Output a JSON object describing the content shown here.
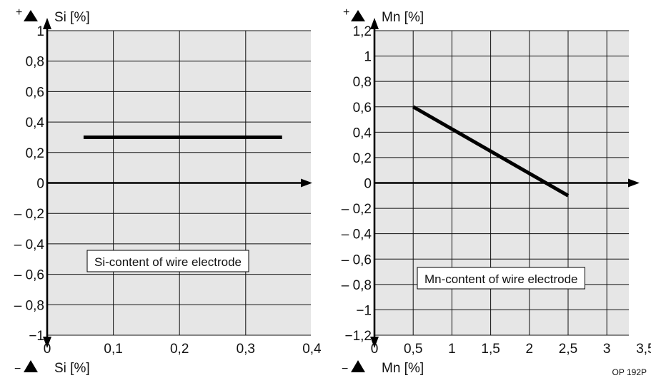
{
  "chart_data": [
    {
      "type": "line",
      "xlim": [
        0,
        0.4
      ],
      "ylim": [
        -1,
        1
      ],
      "x_ticks": [
        "0",
        "0,1",
        "0,2",
        "0,3",
        "0,4"
      ],
      "y_ticks": [
        "−1",
        "– 0,8",
        "– 0,6",
        "– 0,4",
        "– 0,2",
        "0",
        "0,2",
        "0,4",
        "0,6",
        "0,8",
        "1"
      ],
      "top_label": "Si [%]",
      "top_sign": "+",
      "bottom_label": "Si [%]",
      "bottom_sign": "−",
      "annotation": "Si-content of wire electrode",
      "grid": true,
      "background": "#e6e6e6",
      "series": [
        {
          "x": [
            0.055,
            0.355
          ],
          "y": [
            0.3,
            0.3
          ]
        }
      ]
    },
    {
      "type": "line",
      "xlim": [
        0,
        3.5
      ],
      "ylim": [
        -1.2,
        1.2
      ],
      "x_ticks": [
        "0",
        "0,5",
        "1",
        "1,5",
        "2",
        "2,5",
        "3",
        "3,5"
      ],
      "y_ticks": [
        "−1,2",
        "−1",
        "– 0,8",
        "– 0,6",
        "– 0,4",
        "– 0,2",
        "0",
        "0,2",
        "0,4",
        "0,6",
        "0,8",
        "1",
        "1,2"
      ],
      "top_label": "Mn [%]",
      "top_sign": "+",
      "bottom_label": "Mn [%]",
      "bottom_sign": "−",
      "annotation": "Mn-content of wire electrode",
      "grid": true,
      "background": "#e6e6e6",
      "series": [
        {
          "x": [
            0.5,
            2.5
          ],
          "y": [
            0.6,
            -0.1
          ]
        }
      ]
    }
  ],
  "figure_code": "OP 192P"
}
